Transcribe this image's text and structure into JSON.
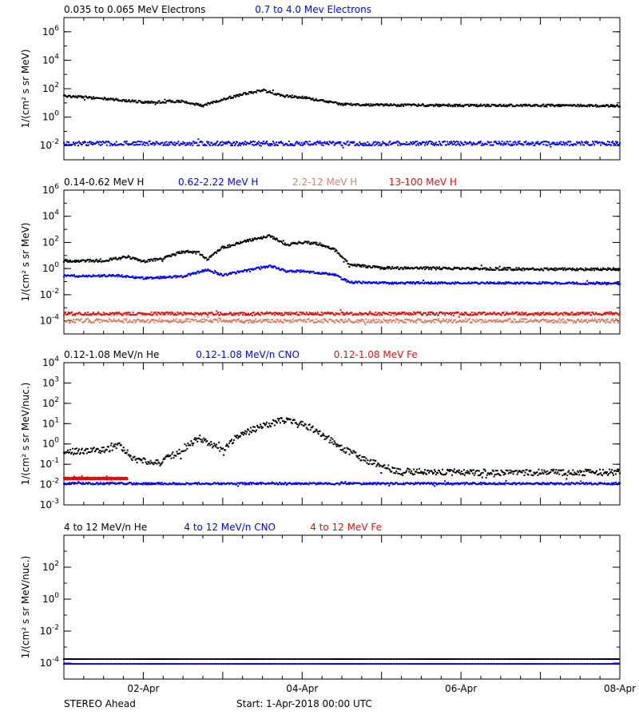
{
  "footer": {
    "spacecraft": "STEREO Ahead",
    "start": "Start:  1-Apr-2018 00:00 UTC"
  },
  "x_axis": {
    "range_days": [
      0,
      7
    ],
    "ticks": [
      {
        "day": 1,
        "label": "02-Apr"
      },
      {
        "day": 3,
        "label": "04-Apr"
      },
      {
        "day": 5,
        "label": "06-Apr"
      },
      {
        "day": 7,
        "label": "08-Apr"
      }
    ]
  },
  "chart_data": [
    {
      "type": "scatter",
      "ylabel": "1/(cm² s sr MeV)",
      "yscale": "log",
      "ylim_log10": [
        -3,
        7
      ],
      "yticks": [
        {
          "exp": -2,
          "base": "10",
          "sup": "-2"
        },
        {
          "exp": 0,
          "base": "10",
          "sup": "0"
        },
        {
          "exp": 2,
          "base": "10",
          "sup": "2"
        },
        {
          "exp": 4,
          "base": "10",
          "sup": "4"
        },
        {
          "exp": 6,
          "base": "10",
          "sup": "6"
        }
      ],
      "legend": [
        {
          "text": "0.035 to 0.065 MeV Electrons",
          "color": "#000000"
        },
        {
          "text": "0.7 to 4.0 Mev Electrons",
          "color": "#0000ff"
        }
      ],
      "series": [
        {
          "name": "0.035 to 0.065 MeV Electrons",
          "color": "#000000",
          "noise": 0.08,
          "x": [
            0,
            0.5,
            1.0,
            1.5,
            1.75,
            2.0,
            2.25,
            2.5,
            2.75,
            3.0,
            3.5,
            4.0,
            5.0,
            6.0,
            7.0
          ],
          "y_log10": [
            1.5,
            1.3,
            1.05,
            1.1,
            0.8,
            1.25,
            1.6,
            1.9,
            1.5,
            1.4,
            0.9,
            0.85,
            0.82,
            0.82,
            0.8
          ]
        },
        {
          "name": "0.7 to 4.0 Mev Electrons",
          "color": "#0000ff",
          "noise": 0.15,
          "x": [
            0,
            7.0
          ],
          "y_log10": [
            -1.85,
            -1.85
          ]
        }
      ]
    },
    {
      "type": "scatter",
      "ylabel": "1/(cm² s sr MeV)",
      "yscale": "log",
      "ylim_log10": [
        -5,
        6
      ],
      "yticks": [
        {
          "exp": -4,
          "base": "10",
          "sup": "-4"
        },
        {
          "exp": -2,
          "base": "10",
          "sup": "-2"
        },
        {
          "exp": 0,
          "base": "10",
          "sup": "0"
        },
        {
          "exp": 2,
          "base": "10",
          "sup": "2"
        },
        {
          "exp": 4,
          "base": "10",
          "sup": "4"
        },
        {
          "exp": 6,
          "base": "10",
          "sup": "6"
        }
      ],
      "legend": [
        {
          "text": "0.14-0.62 MeV H",
          "color": "#000000"
        },
        {
          "text": "0.62-2.22 MeV H",
          "color": "#0000ff"
        },
        {
          "text": "2.2-12 MeV H",
          "color": "#d4826a"
        },
        {
          "text": "13-100 MeV H",
          "color": "#e01010"
        }
      ],
      "series": [
        {
          "name": "0.14-0.62 MeV H",
          "color": "#000000",
          "noise": 0.1,
          "x": [
            0,
            0.5,
            0.8,
            1.0,
            1.2,
            1.5,
            1.7,
            1.8,
            2.0,
            2.3,
            2.6,
            2.8,
            3.0,
            3.2,
            3.4,
            3.6,
            4.0,
            5.0,
            6.0,
            7.0
          ],
          "y_log10": [
            0.6,
            0.6,
            0.9,
            0.55,
            0.7,
            1.3,
            1.2,
            0.7,
            1.6,
            2.1,
            2.5,
            1.8,
            2.0,
            1.9,
            1.5,
            0.3,
            0.05,
            0.0,
            -0.05,
            -0.05
          ]
        },
        {
          "name": "0.62-2.22 MeV H",
          "color": "#0000ff",
          "noise": 0.08,
          "x": [
            0,
            0.7,
            1.0,
            1.5,
            1.8,
            2.0,
            2.6,
            2.8,
            3.0,
            3.4,
            3.6,
            4.0,
            5.0,
            6.0,
            7.0
          ],
          "y_log10": [
            -0.55,
            -0.55,
            -0.75,
            -0.6,
            -0.1,
            -0.5,
            0.2,
            -0.2,
            -0.2,
            -0.45,
            -1.05,
            -1.1,
            -1.1,
            -1.1,
            -1.15
          ]
        },
        {
          "name": "2.2-12 MeV H",
          "color": "#d4826a",
          "noise": 0.15,
          "x": [
            0,
            7.0
          ],
          "y_log10": [
            -4.0,
            -4.0
          ]
        },
        {
          "name": "13-100 MeV H",
          "color": "#e01010",
          "noise": 0.12,
          "x": [
            0,
            7.0
          ],
          "y_log10": [
            -3.45,
            -3.45
          ]
        }
      ]
    },
    {
      "type": "scatter",
      "ylabel": "1/(cm² s sr MeV/nuc.)",
      "yscale": "log",
      "ylim_log10": [
        -3,
        4
      ],
      "yticks": [
        {
          "exp": -3,
          "base": "10",
          "sup": "-3"
        },
        {
          "exp": -2,
          "base": "10",
          "sup": "-2"
        },
        {
          "exp": -1,
          "base": "10",
          "sup": "-1"
        },
        {
          "exp": 0,
          "base": "10",
          "sup": "0"
        },
        {
          "exp": 1,
          "base": "10",
          "sup": "1"
        },
        {
          "exp": 2,
          "base": "10",
          "sup": "2"
        },
        {
          "exp": 3,
          "base": "10",
          "sup": "3"
        },
        {
          "exp": 4,
          "base": "10",
          "sup": "4"
        }
      ],
      "legend": [
        {
          "text": "0.12-1.08 MeV/n He",
          "color": "#000000"
        },
        {
          "text": "0.12-1.08 MeV/n CNO",
          "color": "#0000ff"
        },
        {
          "text": "0.12-1.08 MeV Fe",
          "color": "#e01010"
        }
      ],
      "series": [
        {
          "name": "0.12-1.08 MeV/n He",
          "color": "#000000",
          "noise": 0.15,
          "x": [
            0,
            0.5,
            0.7,
            0.9,
            1.2,
            1.5,
            1.7,
            2.0,
            2.2,
            2.5,
            2.8,
            3.0,
            3.2,
            3.5,
            3.8,
            4.2,
            5.0,
            6.0,
            7.0
          ],
          "y_log10": [
            -0.4,
            -0.3,
            -0.1,
            -0.8,
            -0.9,
            -0.3,
            0.3,
            -0.3,
            0.4,
            0.9,
            1.2,
            1.0,
            0.6,
            -0.2,
            -0.8,
            -1.35,
            -1.4,
            -1.4,
            -1.4
          ]
        },
        {
          "name": "0.12-1.08 MeV/n CNO",
          "color": "#0000ff",
          "noise": 0.05,
          "x": [
            0,
            7.0
          ],
          "y_log10": [
            -1.95,
            -1.95
          ]
        },
        {
          "name": "0.12-1.08 MeV Fe",
          "color": "#e01010",
          "noise": 0.05,
          "x": [
            0,
            0.8
          ],
          "y_log10": [
            -1.7,
            -1.7
          ]
        }
      ]
    },
    {
      "type": "scatter",
      "ylabel": "1/(cm² s sr MeV/nuc.)",
      "yscale": "log",
      "ylim_log10": [
        -5,
        4
      ],
      "yticks": [
        {
          "exp": -4,
          "base": "10",
          "sup": "-4"
        },
        {
          "exp": -2,
          "base": "10",
          "sup": "-2"
        },
        {
          "exp": 0,
          "base": "10",
          "sup": "0"
        },
        {
          "exp": 2,
          "base": "10",
          "sup": "2"
        }
      ],
      "legend": [
        {
          "text": "4 to 12 MeV/n He",
          "color": "#000000"
        },
        {
          "text": "4 to 12 MeV/n CNO",
          "color": "#0000ff"
        },
        {
          "text": "4 to 12 MeV Fe",
          "color": "#e01010"
        }
      ],
      "series": [
        {
          "name": "4 to 12 MeV/n He",
          "color": "#000000",
          "noise": 0.0,
          "x": [
            0,
            7.0
          ],
          "y_log10": [
            -3.75,
            -3.75
          ]
        },
        {
          "name": "4 to 12 MeV/n CNO",
          "color": "#0000ff",
          "noise": 0.0,
          "x": [
            0,
            7.0
          ],
          "y_log10": [
            -4.05,
            -4.05
          ]
        }
      ]
    }
  ]
}
